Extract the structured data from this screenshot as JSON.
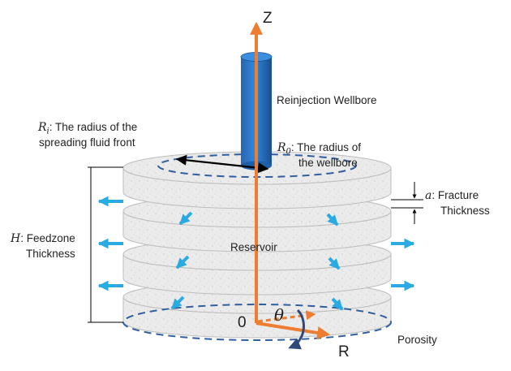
{
  "axes": {
    "z": "Z",
    "r": "R",
    "theta": "θ",
    "origin": "0"
  },
  "labels": {
    "wellbore": "Reinjection Wellbore",
    "ri_symbol": "R",
    "ri_sub": "i",
    "ri_text_line1": ": The radius of the",
    "ri_text_line2": "spreading fluid front",
    "r0_symbol": "R",
    "r0_sub": "0",
    "r0_text_line1": ": The radius of",
    "r0_text_line2": "the wellbore",
    "a_symbol": "a",
    "a_text_line1": ": Fracture",
    "a_text_line2": "Thickness",
    "h_symbol": "H",
    "h_text_line1": ": Feedzone",
    "h_text_line2": "Thickness",
    "reservoir": "Reservoir",
    "porosity": "Porosity"
  },
  "colors": {
    "wellbore": "#1f6fc4",
    "axis": "#ed7d31",
    "flow_arrow": "#2aaae2",
    "rock": "#ececec",
    "dashed_circle": "#2f5f9e"
  }
}
